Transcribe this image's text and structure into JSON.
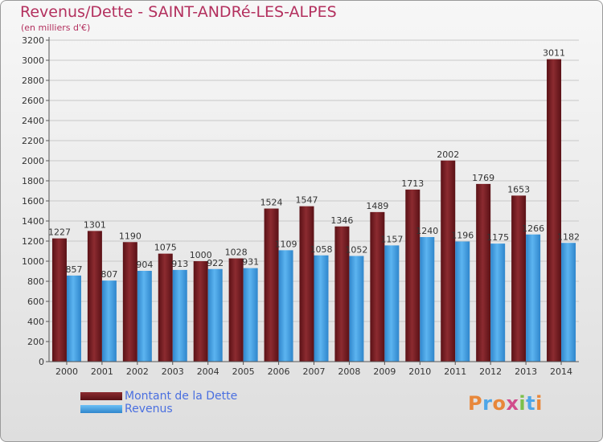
{
  "title": "Revenus/Dette - SAINT-ANDRé-LES-ALPES",
  "subtitle": "(en milliers d'€)",
  "legend": {
    "dette": "Montant de la Dette",
    "revenus": "Revenus"
  },
  "logo": [
    "P",
    "r",
    "o",
    "x",
    "i",
    "t",
    "i"
  ],
  "colors": {
    "dette": "#7a1f24",
    "revenus": "#4da6e8",
    "title": "#b3305e",
    "legend_text": "#4a6fe0",
    "logo": [
      "#e8873a",
      "#4da6e8",
      "#e8873a",
      "#d14b8c",
      "#7cc04b",
      "#4da6e8",
      "#e8873a"
    ]
  },
  "chart_data": {
    "type": "bar",
    "categories": [
      "2000",
      "2001",
      "2002",
      "2003",
      "2004",
      "2005",
      "2006",
      "2007",
      "2008",
      "2009",
      "2010",
      "2011",
      "2012",
      "2013",
      "2014"
    ],
    "series": [
      {
        "name": "Montant de la Dette",
        "values": [
          1227,
          1301,
          1190,
          1075,
          1000,
          1028,
          1524,
          1547,
          1346,
          1489,
          1713,
          2002,
          1769,
          1653,
          3011
        ]
      },
      {
        "name": "Revenus",
        "values": [
          857,
          807,
          904,
          913,
          922,
          931,
          1109,
          1058,
          1052,
          1157,
          1240,
          1196,
          1175,
          1266,
          1182
        ]
      }
    ],
    "yticks": [
      "0",
      "200",
      "400",
      "600",
      "800",
      "1000",
      "1200",
      "1400",
      "1600",
      "1800",
      "2000",
      "2200",
      "2400",
      "2600",
      "2800",
      "3000",
      "3200"
    ],
    "ylim": [
      0,
      3200
    ],
    "grid": true,
    "legend_position": "bottom-left"
  }
}
